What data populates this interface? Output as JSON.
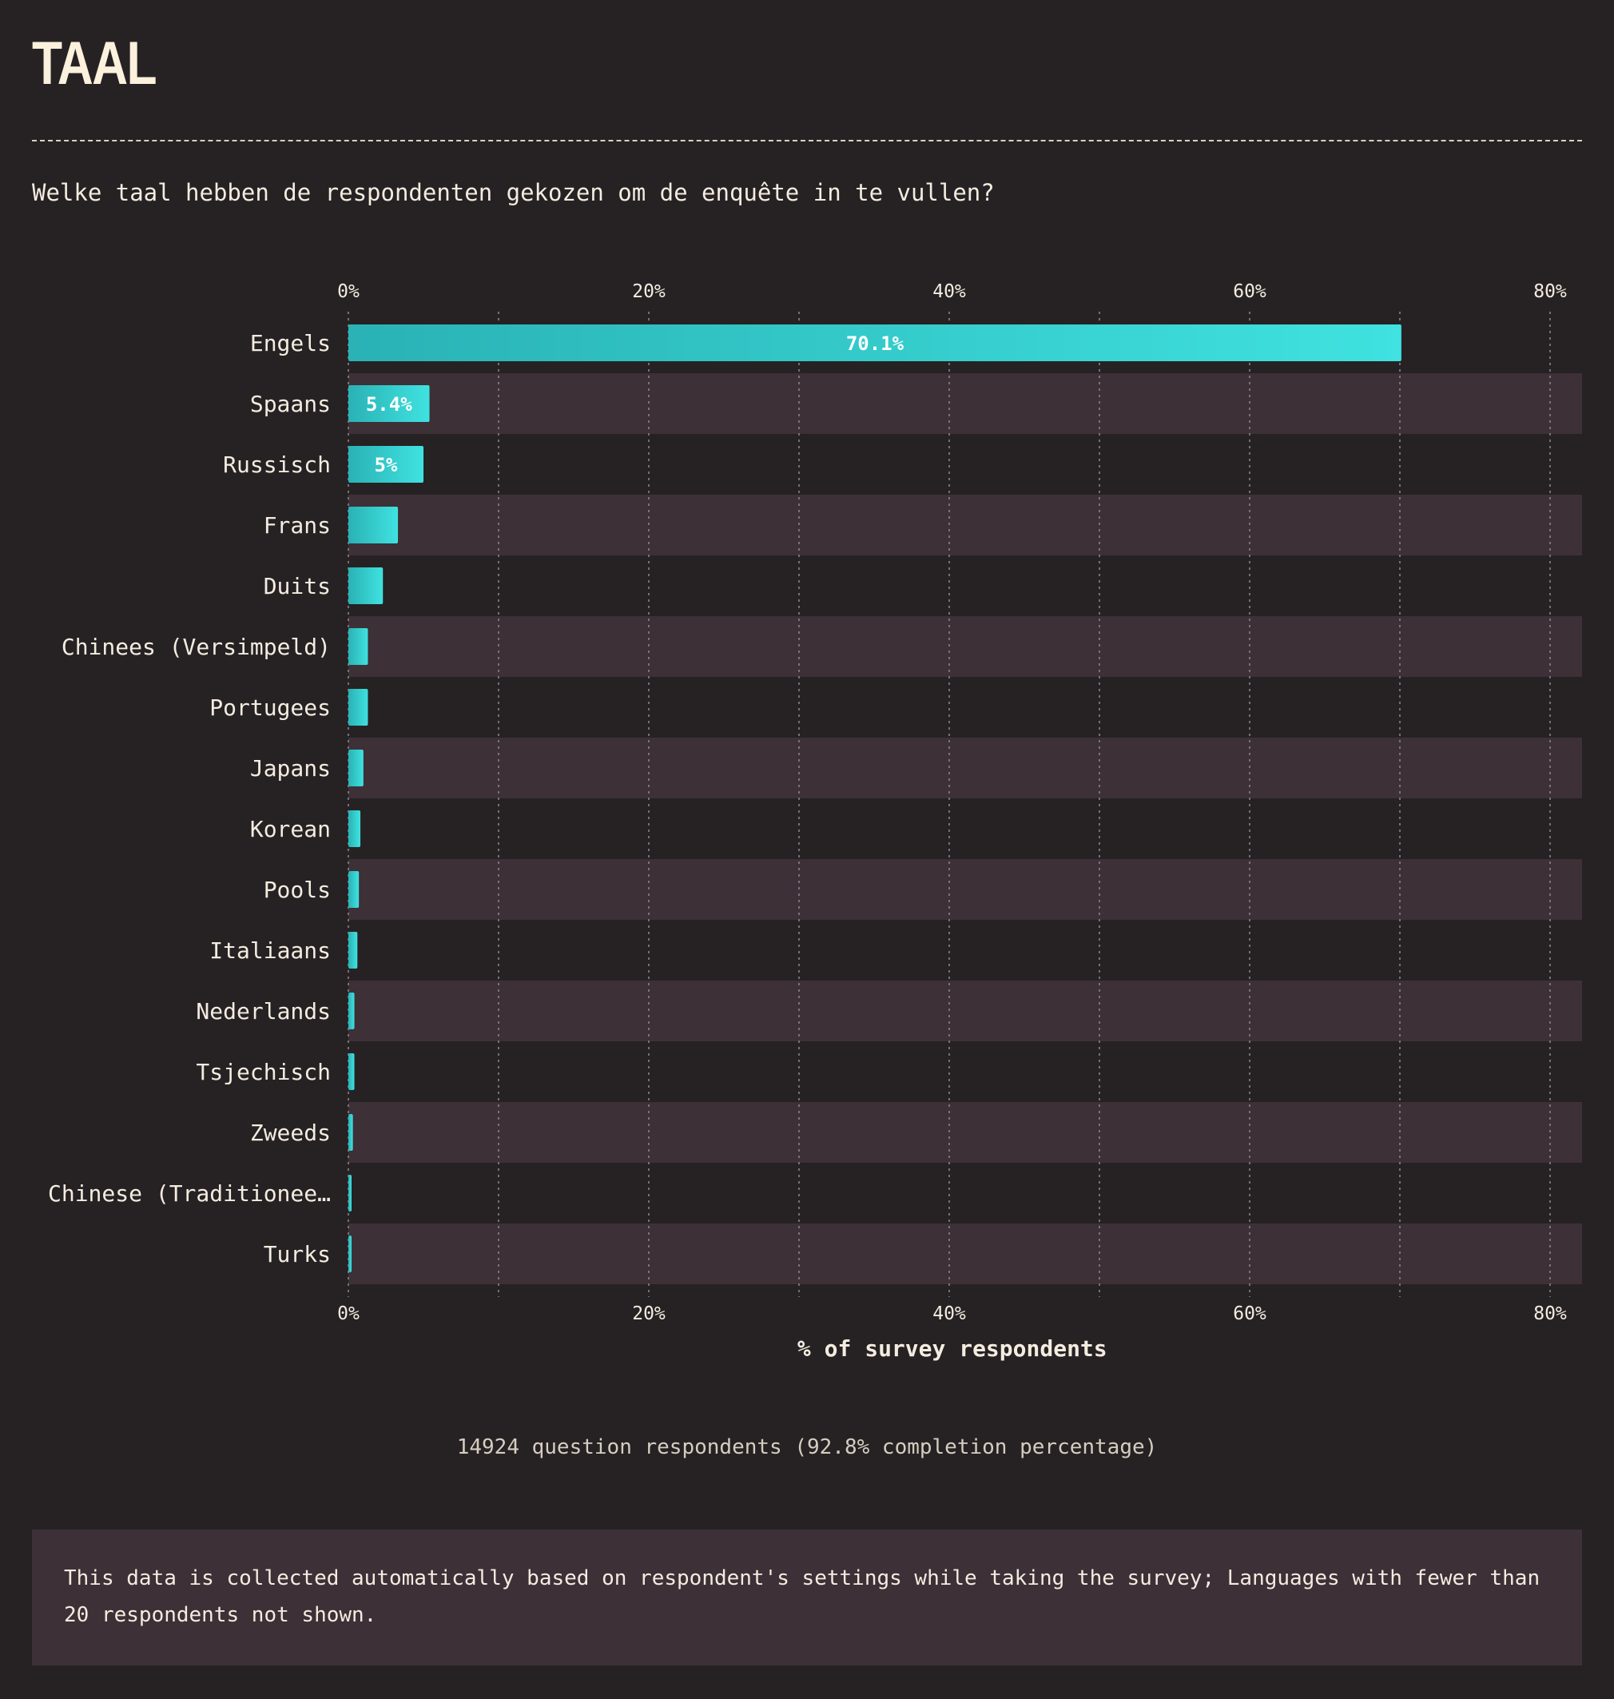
{
  "page": {
    "title": "TAAL",
    "question": "Welke taal hebben de respondenten gekozen om de enquête in te vullen?",
    "respondents": "14924 question respondents (92.8% completion percentage)",
    "note": "This data is collected automatically based on respondent's settings while taking the survey; Languages with fewer than 20 respondents not shown."
  },
  "colors": {
    "background": "#262224",
    "stripe": "#3d3037",
    "bar_start": "#2ab2b5",
    "bar_end": "#3fe2e0"
  },
  "chart_data": {
    "type": "bar",
    "orientation": "horizontal",
    "categories": [
      "Engels",
      "Spaans",
      "Russisch",
      "Frans",
      "Duits",
      "Chinees (Versimpeld)",
      "Portugees",
      "Japans",
      "Korean",
      "Pools",
      "Italiaans",
      "Nederlands",
      "Tsjechisch",
      "Zweeds",
      "Chinese (Traditionee…",
      "Turks"
    ],
    "values": [
      70.1,
      5.4,
      5.0,
      3.3,
      2.3,
      1.3,
      1.3,
      1.0,
      0.8,
      0.7,
      0.6,
      0.4,
      0.4,
      0.3,
      0.2,
      0.2
    ],
    "data_labels": [
      "70.1%",
      "5.4%",
      "5%",
      "",
      "",
      "",
      "",
      "",
      "",
      "",
      "",
      "",
      "",
      "",
      "",
      ""
    ],
    "xlabel": "% of survey respondents",
    "xlim": [
      0,
      82
    ],
    "ticks": [
      0,
      20,
      40,
      60,
      80
    ],
    "tick_labels": [
      "0%",
      "20%",
      "40%",
      "60%",
      "80%"
    ],
    "minor_gridlines": [
      10,
      30,
      50,
      70
    ],
    "grid": true,
    "axis_labels_position": "top and bottom"
  }
}
